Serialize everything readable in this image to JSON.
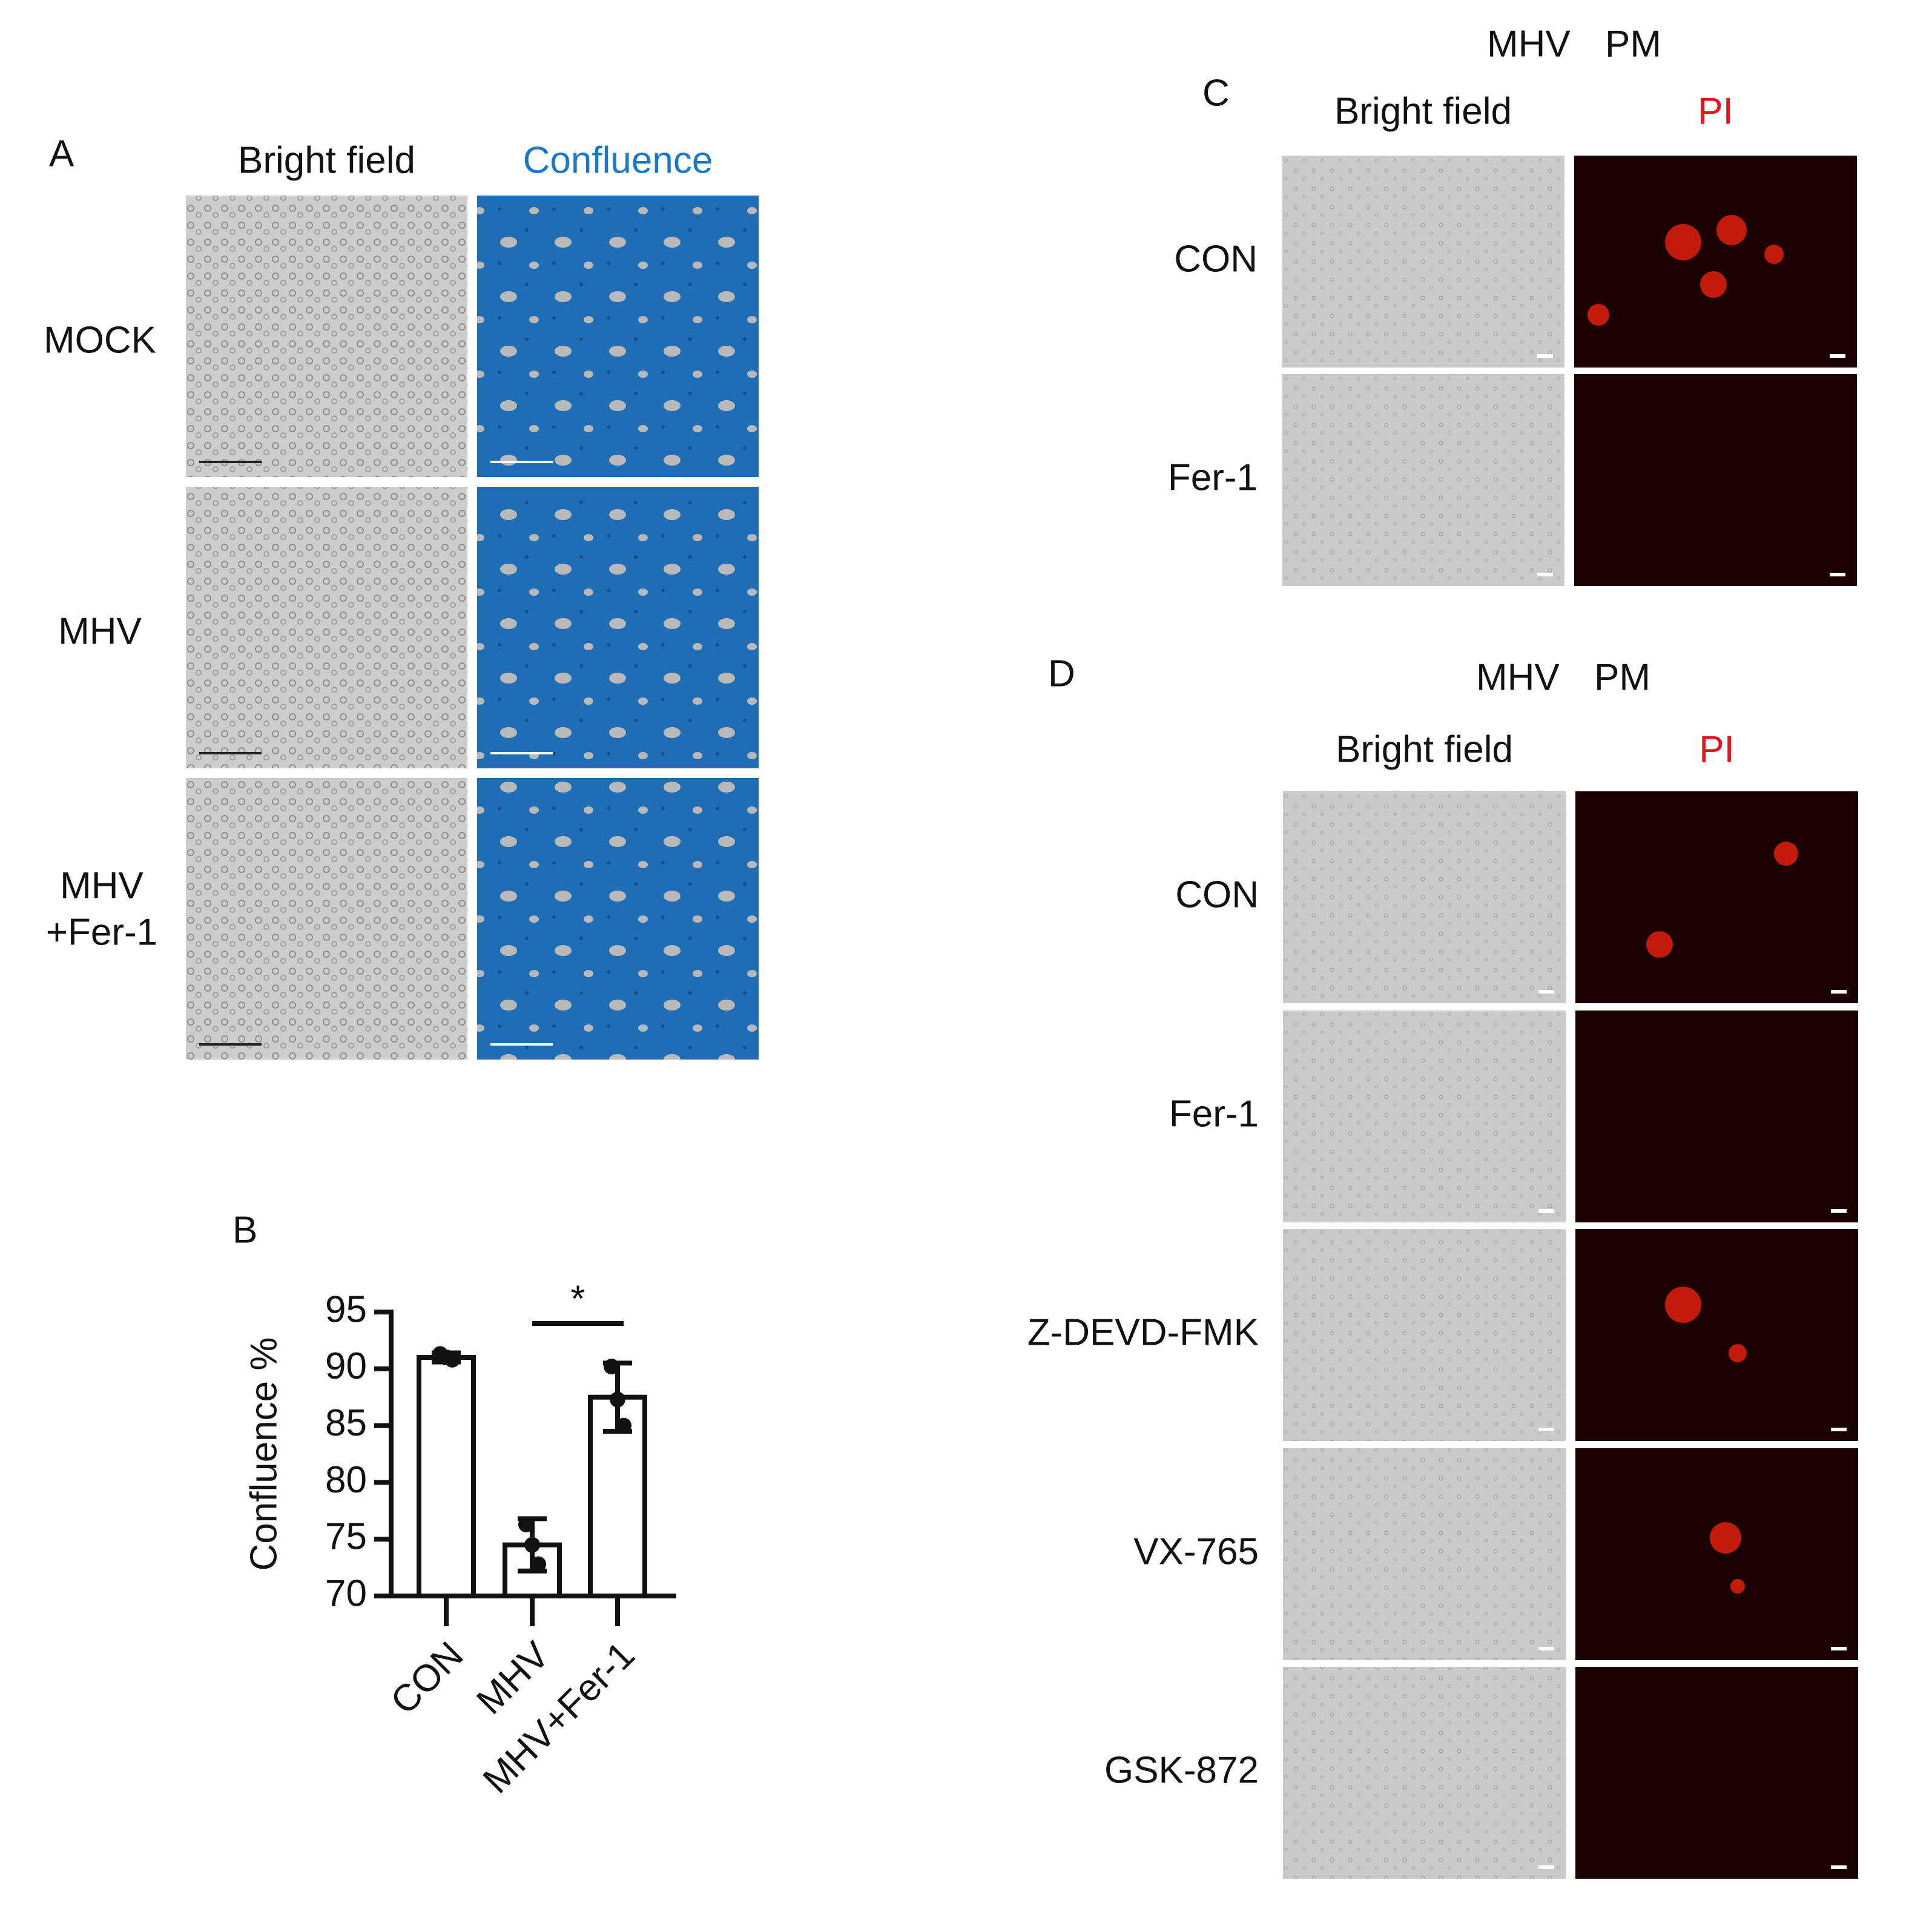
{
  "panel_a": {
    "label": "A",
    "columns": [
      "Bright field",
      "Confluence"
    ],
    "rows": [
      "MOCK",
      "MHV",
      [
        "MHV",
        "+Fer-1"
      ]
    ]
  },
  "chart_data": {
    "type": "bar",
    "label": "B",
    "y_label": "Confluence %",
    "categories": [
      "CON",
      "MHV",
      "MHV+Fer-1"
    ],
    "values": [
      91.0,
      74.5,
      87.5
    ],
    "errors": [
      0.4,
      2.3,
      3.0
    ],
    "points": [
      [
        91.3,
        91.0,
        90.8
      ],
      [
        76.3,
        74.5,
        72.8
      ],
      [
        90.2,
        87.3,
        85.0
      ]
    ],
    "color": "#ffffff",
    "significance": "*",
    "ylim": [
      70,
      95
    ],
    "yticks": [
      70,
      75,
      80,
      85,
      90,
      95
    ]
  },
  "panel_c": {
    "label": "C",
    "title": "MHV PM",
    "columns": [
      "Bright field",
      "PI"
    ],
    "rows": [
      "CON",
      "Fer-1"
    ]
  },
  "panel_d": {
    "label": "D",
    "title": "MHV PM",
    "columns": [
      "Bright field",
      "PI"
    ],
    "rows": [
      "CON",
      "Fer-1",
      "Z-DEVD-FMK",
      "VX-765",
      "GSK-872"
    ]
  }
}
